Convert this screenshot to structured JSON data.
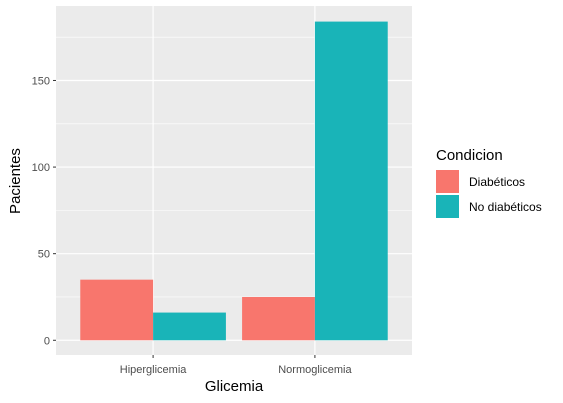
{
  "chart_data": {
    "type": "bar",
    "xlabel": "Glicemia",
    "ylabel": "Pacientes",
    "categories": [
      "Hiperglicemia",
      "Normoglicemia"
    ],
    "series": [
      {
        "name": "Diabéticos",
        "values": [
          35,
          25
        ],
        "color": "#F8766D"
      },
      {
        "name": "No diabéticos",
        "values": [
          16,
          184
        ],
        "color": "#19B4B8"
      }
    ],
    "ylim": [
      -8.5,
      193
    ],
    "yticks": [
      0,
      50,
      100,
      150
    ],
    "grid": true,
    "legend": {
      "title": "Condicion",
      "placement": "right"
    }
  }
}
